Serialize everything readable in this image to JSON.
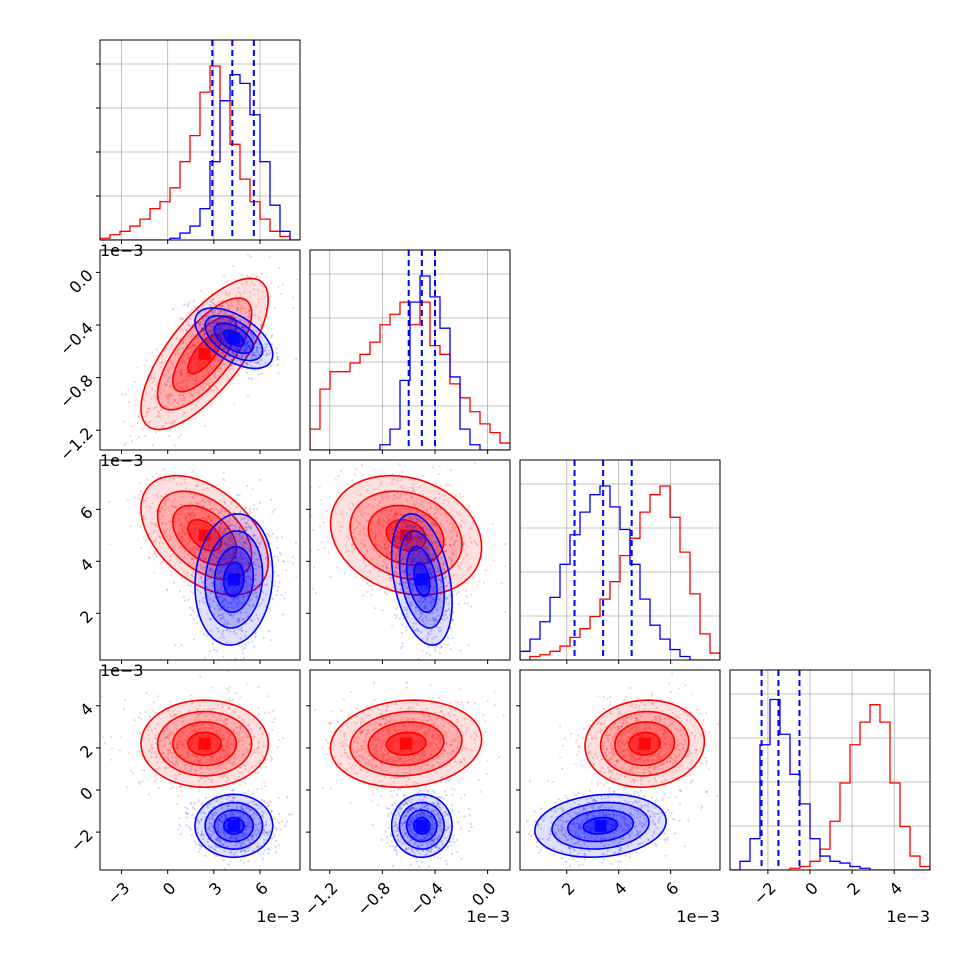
{
  "chart_data": {
    "type": "corner",
    "parameters": [
      {
        "range": [
          -4.4,
          8.6
        ],
        "ticks": [
          -3,
          0,
          3,
          6
        ],
        "tick_labels": [
          "−3",
          "0",
          "3",
          "6"
        ],
        "offset": "1e−3"
      },
      {
        "range": [
          -1.35,
          0.17
        ],
        "ticks": [
          -1.2,
          -0.8,
          -0.4,
          0.0
        ],
        "tick_labels": [
          "−1.2",
          "−0.8",
          "−0.4",
          "0.0"
        ],
        "offset": "1e−3"
      },
      {
        "range": [
          0.2,
          7.9
        ],
        "ticks": [
          2,
          4,
          6
        ],
        "tick_labels": [
          "2",
          "4",
          "6"
        ],
        "offset": "1e−3"
      },
      {
        "range": [
          -3.8,
          5.7
        ],
        "ticks": [
          -2,
          0,
          2,
          4
        ],
        "tick_labels": [
          "−2",
          "0",
          "2",
          "4"
        ],
        "offset": "1e−3"
      }
    ],
    "series": [
      {
        "color": "#ff0000",
        "mean": [
          2.4,
          -0.62,
          5.0,
          2.2
        ],
        "sd": [
          1.8,
          0.25,
          1.0,
          0.9
        ],
        "corr": [
          [
            0,
            1,
            0.72
          ],
          [
            0,
            2,
            -0.45
          ],
          [
            1,
            2,
            -0.2
          ],
          [
            1,
            3,
            0.1
          ],
          [
            2,
            3,
            0.05
          ],
          [
            0,
            3,
            0.0
          ]
        ],
        "quantiles": [],
        "hist": [
          [
            0.01,
            0.03,
            0.05,
            0.08,
            0.12,
            0.18,
            0.22,
            0.3,
            0.45,
            0.6,
            0.85,
            1.0,
            0.8,
            0.55,
            0.35,
            0.22,
            0.12,
            0.05,
            0.02,
            0.0
          ],
          [
            0.12,
            0.35,
            0.45,
            0.45,
            0.5,
            0.55,
            0.62,
            0.72,
            0.78,
            0.85,
            0.72,
            0.85,
            0.6,
            0.55,
            0.38,
            0.3,
            0.22,
            0.15,
            0.1,
            0.04
          ],
          [
            0.0,
            0.02,
            0.03,
            0.05,
            0.08,
            0.13,
            0.18,
            0.25,
            0.35,
            0.45,
            0.6,
            0.7,
            0.85,
            0.95,
            1.0,
            0.82,
            0.62,
            0.38,
            0.15,
            0.04
          ],
          [
            0.0,
            0.0,
            0.0,
            0.0,
            0.0,
            0.0,
            0.01,
            0.02,
            0.05,
            0.12,
            0.28,
            0.5,
            0.72,
            0.85,
            0.95,
            0.85,
            0.5,
            0.25,
            0.08,
            0.02
          ]
        ]
      },
      {
        "color": "#0000ff",
        "mean": [
          4.3,
          -0.5,
          3.3,
          -1.7
        ],
        "sd": [
          1.1,
          0.1,
          1.1,
          0.65
        ],
        "corr": [
          [
            0,
            1,
            -0.55
          ],
          [
            0,
            2,
            0.1
          ],
          [
            1,
            2,
            -0.35
          ],
          [
            1,
            3,
            0.0
          ],
          [
            2,
            3,
            0.15
          ],
          [
            0,
            3,
            0.0
          ]
        ],
        "quantiles": [
          [
            2.9,
            4.2,
            5.6
          ],
          [
            -0.6,
            -0.5,
            -0.4
          ],
          [
            2.3,
            3.4,
            4.5
          ],
          [
            -2.3,
            -1.5,
            -0.5
          ]
        ],
        "hist": [
          [
            0.0,
            0.0,
            0.0,
            0.0,
            0.0,
            0.0,
            0.0,
            0.01,
            0.04,
            0.08,
            0.18,
            0.45,
            0.8,
            0.95,
            0.9,
            0.72,
            0.45,
            0.2,
            0.05,
            0.0
          ],
          [
            0.0,
            0.0,
            0.0,
            0.0,
            0.0,
            0.0,
            0.0,
            0.03,
            0.12,
            0.4,
            0.85,
            1.0,
            0.88,
            0.7,
            0.42,
            0.12,
            0.03,
            0.0,
            0.0,
            0.0
          ],
          [
            0.05,
            0.12,
            0.22,
            0.36,
            0.55,
            0.72,
            0.85,
            0.95,
            1.0,
            0.88,
            0.75,
            0.55,
            0.35,
            0.2,
            0.12,
            0.06,
            0.02,
            0.0,
            0.0,
            0.0
          ],
          [
            0.0,
            0.05,
            0.18,
            0.72,
            0.98,
            0.78,
            0.55,
            0.38,
            0.18,
            0.08,
            0.05,
            0.04,
            0.02,
            0.01,
            0.0,
            0.0,
            0.0,
            0.0,
            0.0,
            0.0
          ]
        ]
      }
    ]
  }
}
